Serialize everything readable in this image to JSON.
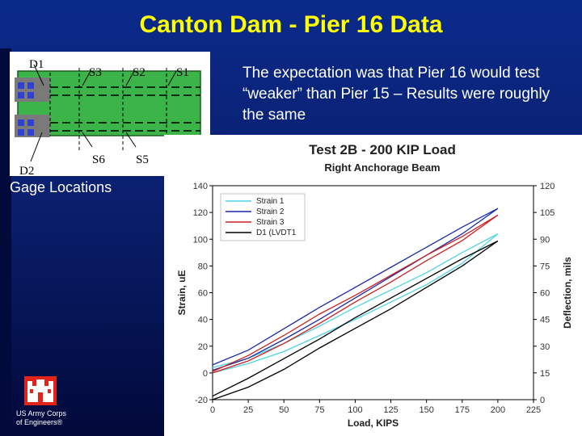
{
  "slide": {
    "title": "Canton Dam - Pier 16 Data",
    "note": "The expectation was that Pier 16 would test “weaker” than  Pier 15 – Results were roughly the same",
    "gage_caption": "Gage Locations",
    "org_line1": "US Army Corps",
    "org_line2": "of Engineers®"
  },
  "gage_diagram": {
    "labels": [
      "D1",
      "S3",
      "S2",
      "S1",
      "S6",
      "S5",
      "D2"
    ]
  },
  "colors": {
    "title": "#ffff00",
    "background": "#0a1f6e",
    "logo": "#e2231a",
    "strain1": "#4fd3e6",
    "strain2": "#1a2aa8",
    "strain3": "#cc2020",
    "d1": "#000000",
    "diagram_fill": "#3cb44a"
  },
  "chart_data": {
    "type": "line",
    "title": "Test 2B - 200 KIP Load",
    "subtitle": "Right Anchorage Beam",
    "xlabel": "Load, KIPS",
    "ylabel": "Strain, uE",
    "y2label": "Deflection, mils",
    "xlim": [
      0,
      225
    ],
    "ylim": [
      -20,
      140
    ],
    "y2lim": [
      0,
      120
    ],
    "xticks": [
      "0",
      "25",
      "50",
      "75",
      "100",
      "125",
      "150",
      "175",
      "200",
      "225"
    ],
    "yticks": [
      "-20",
      "0",
      "20",
      "40",
      "60",
      "80",
      "100",
      "120",
      "140"
    ],
    "y2ticks": [
      "0",
      "15",
      "30",
      "45",
      "60",
      "75",
      "90",
      "105",
      "120"
    ],
    "legend_position": "top-left",
    "grid": false,
    "series": [
      {
        "name": "Strain 1",
        "axis": "left",
        "up": [
          [
            0,
            4
          ],
          [
            25,
            11
          ],
          [
            50,
            22
          ],
          [
            75,
            35
          ],
          [
            100,
            49
          ],
          [
            125,
            62
          ],
          [
            150,
            75
          ],
          [
            175,
            90
          ],
          [
            200,
            104
          ]
        ],
        "down": [
          [
            200,
            104
          ],
          [
            175,
            82
          ],
          [
            150,
            66
          ],
          [
            125,
            53
          ],
          [
            100,
            40
          ],
          [
            75,
            28
          ],
          [
            50,
            16
          ],
          [
            25,
            7
          ],
          [
            0,
            0
          ]
        ]
      },
      {
        "name": "Strain 2",
        "axis": "left",
        "up": [
          [
            0,
            6
          ],
          [
            25,
            17
          ],
          [
            50,
            33
          ],
          [
            75,
            49
          ],
          [
            100,
            64
          ],
          [
            125,
            79
          ],
          [
            150,
            94
          ],
          [
            175,
            109
          ],
          [
            200,
            123
          ]
        ],
        "down": [
          [
            200,
            123
          ],
          [
            175,
            104
          ],
          [
            150,
            88
          ],
          [
            125,
            72
          ],
          [
            100,
            56
          ],
          [
            75,
            40
          ],
          [
            50,
            25
          ],
          [
            25,
            11
          ],
          [
            0,
            2
          ]
        ]
      },
      {
        "name": "Strain 3",
        "axis": "left",
        "up": [
          [
            0,
            1
          ],
          [
            25,
            13
          ],
          [
            50,
            28
          ],
          [
            75,
            44
          ],
          [
            100,
            58
          ],
          [
            125,
            73
          ],
          [
            150,
            88
          ],
          [
            175,
            102
          ],
          [
            200,
            118
          ]
        ],
        "down": [
          [
            200,
            118
          ],
          [
            175,
            99
          ],
          [
            150,
            84
          ],
          [
            125,
            68
          ],
          [
            100,
            53
          ],
          [
            75,
            37
          ],
          [
            50,
            22
          ],
          [
            25,
            9
          ],
          [
            0,
            0
          ]
        ]
      },
      {
        "name": "D1 (LVDT1",
        "axis": "right",
        "up": [
          [
            0,
            2
          ],
          [
            25,
            12
          ],
          [
            50,
            23
          ],
          [
            75,
            34
          ],
          [
            100,
            46
          ],
          [
            125,
            57
          ],
          [
            150,
            68
          ],
          [
            175,
            79
          ],
          [
            200,
            89
          ]
        ],
        "down": [
          [
            200,
            89
          ],
          [
            175,
            75
          ],
          [
            150,
            63
          ],
          [
            125,
            51
          ],
          [
            100,
            40
          ],
          [
            75,
            29
          ],
          [
            50,
            17
          ],
          [
            25,
            7
          ],
          [
            0,
            0
          ]
        ]
      }
    ]
  }
}
